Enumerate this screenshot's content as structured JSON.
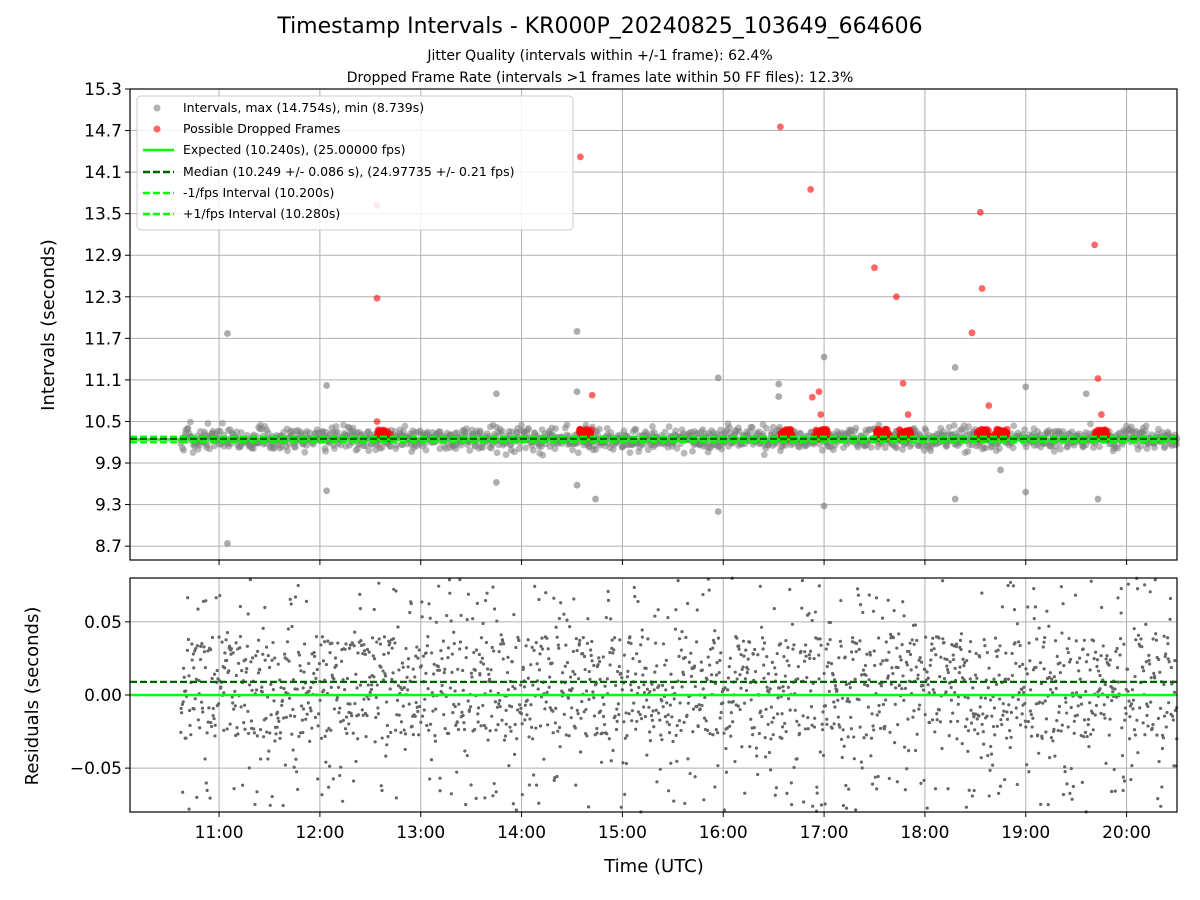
{
  "title": "Timestamp Intervals - KR000P_20240825_103649_664606",
  "subtitle_1": "Jitter Quality (intervals within +/-1 frame): 62.4%",
  "subtitle_2": "Dropped Frame Rate (intervals >1 frames late within 50 FF files): 12.3%",
  "colors": {
    "intervals": "#808080",
    "dropped": "#ff0000",
    "expected": "#00ff00",
    "median": "#006400",
    "fps_interval": "#00ff00",
    "residuals": "#666666",
    "grid": "#b0b0b0"
  },
  "chart_data": [
    {
      "type": "scatter",
      "name": "intervals",
      "ylabel": "Intervals (seconds)",
      "xlabel": "",
      "grid": true,
      "legend_position": "upper-left",
      "xlim": [
        "10:07",
        "20:30"
      ],
      "ylim": [
        8.5,
        15.3
      ],
      "y_ticks": [
        "8.7",
        "9.3",
        "9.9",
        "10.5",
        "11.1",
        "11.7",
        "12.3",
        "12.9",
        "13.5",
        "14.1",
        "14.7",
        "15.3"
      ],
      "x_ticks": [
        "11:00",
        "12:00",
        "13:00",
        "14:00",
        "15:00",
        "16:00",
        "17:00",
        "18:00",
        "19:00",
        "20:00"
      ],
      "legend": [
        {
          "label": "Intervals, max (14.754s), min (8.739s)",
          "kind": "marker-gray"
        },
        {
          "label": "Possible Dropped Frames",
          "kind": "marker-red"
        },
        {
          "label": "Expected (10.240s), (25.00000 fps)",
          "kind": "line-solid-green"
        },
        {
          "label": "Median (10.249 +/- 0.086 s), (24.97735 +/- 0.21 fps)",
          "kind": "line-dashed-darkgreen"
        },
        {
          "label": "-1/fps Interval (10.200s)",
          "kind": "line-dashed-green"
        },
        {
          "label": "+1/fps Interval (10.280s)",
          "kind": "line-dashed-green"
        }
      ],
      "expected": 10.24,
      "median": 10.249,
      "minus_fps": 10.2,
      "plus_fps": 10.28,
      "time_range": [
        "10:37",
        "20:30"
      ],
      "typical_range": [
        10.0,
        10.5
      ],
      "outliers": [
        {
          "time": "11:05",
          "y": 11.77
        },
        {
          "time": "11:05",
          "y": 8.739
        },
        {
          "time": "12:04",
          "y": 11.02
        },
        {
          "time": "12:04",
          "y": 9.5
        },
        {
          "time": "13:45",
          "y": 10.9
        },
        {
          "time": "13:45",
          "y": 9.62
        },
        {
          "time": "14:33",
          "y": 10.93
        },
        {
          "time": "14:33",
          "y": 9.58
        },
        {
          "time": "14:33",
          "y": 11.8
        },
        {
          "time": "14:44",
          "y": 9.38
        },
        {
          "time": "15:57",
          "y": 11.13
        },
        {
          "time": "15:57",
          "y": 9.2
        },
        {
          "time": "16:33",
          "y": 11.04
        },
        {
          "time": "16:33",
          "y": 10.86
        },
        {
          "time": "17:00",
          "y": 11.43
        },
        {
          "time": "17:00",
          "y": 9.28
        },
        {
          "time": "18:18",
          "y": 11.28
        },
        {
          "time": "18:18",
          "y": 9.38
        },
        {
          "time": "18:45",
          "y": 9.8
        },
        {
          "time": "19:00",
          "y": 11.0
        },
        {
          "time": "19:00",
          "y": 9.48
        },
        {
          "time": "19:36",
          "y": 10.9
        },
        {
          "time": "19:43",
          "y": 9.38
        }
      ],
      "dropped_clusters": [
        "12:38",
        "14:38",
        "16:38",
        "16:58",
        "17:35",
        "17:48",
        "18:35",
        "18:45",
        "19:45"
      ],
      "dropped_outliers": [
        {
          "time": "12:34",
          "y": 13.62
        },
        {
          "time": "12:34",
          "y": 12.28
        },
        {
          "time": "12:34",
          "y": 10.5
        },
        {
          "time": "14:35",
          "y": 14.32
        },
        {
          "time": "14:42",
          "y": 10.88
        },
        {
          "time": "16:34",
          "y": 14.754
        },
        {
          "time": "16:52",
          "y": 13.85
        },
        {
          "time": "16:57",
          "y": 10.93
        },
        {
          "time": "16:53",
          "y": 10.85
        },
        {
          "time": "16:58",
          "y": 10.6
        },
        {
          "time": "17:30",
          "y": 12.72
        },
        {
          "time": "17:43",
          "y": 12.3
        },
        {
          "time": "17:47",
          "y": 11.05
        },
        {
          "time": "17:50",
          "y": 10.6
        },
        {
          "time": "18:28",
          "y": 11.78
        },
        {
          "time": "18:33",
          "y": 13.52
        },
        {
          "time": "18:34",
          "y": 12.42
        },
        {
          "time": "18:38",
          "y": 10.73
        },
        {
          "time": "19:41",
          "y": 13.05
        },
        {
          "time": "19:43",
          "y": 11.12
        },
        {
          "time": "19:45",
          "y": 10.6
        }
      ]
    },
    {
      "type": "scatter",
      "name": "residuals",
      "ylabel": "Residuals (seconds)",
      "xlabel": "Time (UTC)",
      "grid": true,
      "xlim": [
        "10:07",
        "20:30"
      ],
      "ylim": [
        -0.08,
        0.08
      ],
      "y_ticks": [
        "−0.05",
        "0.00",
        "0.05"
      ],
      "x_ticks": [
        "11:00",
        "12:00",
        "13:00",
        "14:00",
        "15:00",
        "16:00",
        "17:00",
        "18:00",
        "19:00",
        "20:00"
      ],
      "expected_residual": 0.0,
      "median_residual": 0.009,
      "time_range": [
        "10:37",
        "20:30"
      ],
      "core_range": [
        -0.03,
        0.04
      ]
    }
  ]
}
